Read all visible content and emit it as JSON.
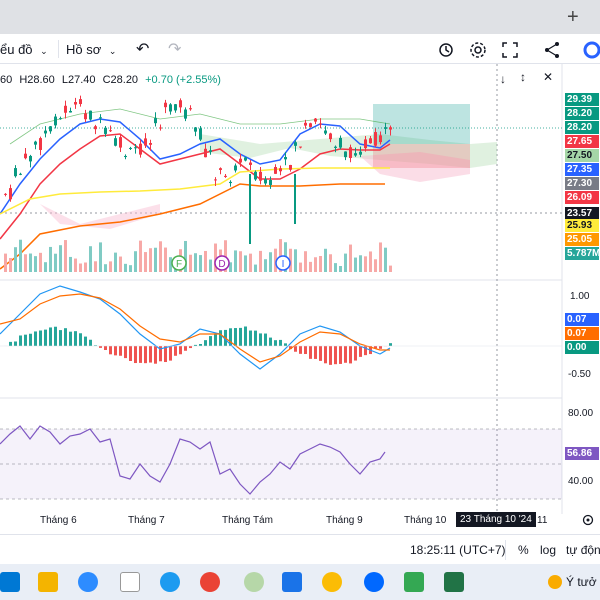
{
  "browser": {
    "new_tab_symbol": "+"
  },
  "toolbar": {
    "chart_menu": "ểu đồ",
    "profile_menu": "Hồ sơ"
  },
  "legend": {
    "open": "60",
    "high": "H28.60",
    "low": "L27.40",
    "close": "C28.20",
    "change": "+0.70 (+2.55%)"
  },
  "price_labels": [
    {
      "text": "29.39",
      "bg": "#089981",
      "fg": "#ffffff"
    },
    {
      "text": "28.20",
      "bg": "#089981",
      "fg": "#ffffff"
    },
    {
      "text": "28.20",
      "bg": "#089981",
      "fg": "#ffffff"
    },
    {
      "text": "27.65",
      "bg": "#f23645",
      "fg": "#ffffff"
    },
    {
      "text": "27.50",
      "bg": "#a5d6a7",
      "fg": "#131722"
    },
    {
      "text": "27.35",
      "bg": "#2962ff",
      "fg": "#ffffff"
    },
    {
      "text": "27.30",
      "bg": "#787b86",
      "fg": "#ffffff"
    },
    {
      "text": "26.09",
      "bg": "#f23645",
      "fg": "#ffffff"
    },
    {
      "text": "23.57",
      "bg": "#131722",
      "fg": "#ffffff"
    },
    {
      "text": "25.93",
      "bg": "#ffeb3b",
      "fg": "#131722"
    },
    {
      "text": "25.05",
      "bg": "#ff9800",
      "fg": "#ffffff"
    },
    {
      "text": "5.787M",
      "bg": "#26a69a",
      "fg": "#ffffff"
    }
  ],
  "events": [
    "F",
    "D",
    "I"
  ],
  "macd_axis": [
    "1.00",
    "-0.50"
  ],
  "macd_labels": [
    {
      "text": "0.07",
      "bg": "#2962ff",
      "fg": "#ffffff"
    },
    {
      "text": "0.07",
      "bg": "#ff6d00",
      "fg": "#ffffff"
    },
    {
      "text": "0.00",
      "bg": "#089981",
      "fg": "#ffffff"
    }
  ],
  "rsi_axis": [
    "80.00",
    "40.00"
  ],
  "rsi_label": {
    "text": "56.86",
    "bg": "#7e57c2",
    "fg": "#ffffff"
  },
  "time_axis": [
    "Tháng 6",
    "Tháng 7",
    "Tháng Tám",
    "Tháng 9",
    "Tháng 10",
    "11"
  ],
  "crosshair_date": "23 Tháng 10 '24",
  "bottom": {
    "clock": "18:25:11 (UTC+7)",
    "percent": "%",
    "log": "log",
    "auto": "tự động"
  },
  "taskbar": {
    "weather_text": "Ý tưở"
  },
  "colors": {
    "up": "#089981",
    "down": "#f23645",
    "ma_blue": "#2962ff",
    "ma_red": "#f23645",
    "yellow": "#ffeb3b",
    "orange": "#ff6d00",
    "rsi": "#7e57c2"
  }
}
